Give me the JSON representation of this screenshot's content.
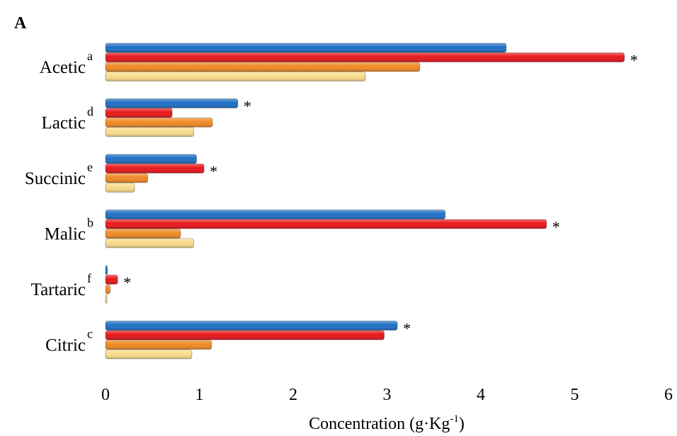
{
  "panel_label": "A",
  "chart_data": {
    "type": "bar",
    "orientation": "horizontal",
    "categories": [
      "Acetic",
      "Lactic",
      "Succinic",
      "Malic",
      "Tartaric",
      "Citric"
    ],
    "category_superscripts": [
      "a",
      "d",
      "e",
      "b",
      "f",
      "c"
    ],
    "series": [
      {
        "color": "#1f6fc4",
        "values": [
          4.27,
          1.41,
          0.97,
          3.62,
          0.02,
          3.11
        ]
      },
      {
        "color": "#e8171b",
        "values": [
          5.53,
          0.71,
          1.05,
          4.7,
          0.13,
          2.97
        ]
      },
      {
        "color": "#f08a25",
        "values": [
          3.35,
          1.14,
          0.45,
          0.8,
          0.05,
          1.13
        ]
      },
      {
        "color": "#f8dc8c",
        "values": [
          2.77,
          0.94,
          0.31,
          0.94,
          0.01,
          0.92
        ]
      }
    ],
    "significance_marks": [
      {
        "category": "Acetic",
        "symbol": "*",
        "series_index": 1
      },
      {
        "category": "Lactic",
        "symbol": "*",
        "series_index": 0
      },
      {
        "category": "Succinic",
        "symbol": "*",
        "series_index": 1
      },
      {
        "category": "Malic",
        "symbol": "*",
        "series_index": 1
      },
      {
        "category": "Tartaric",
        "symbol": "*",
        "series_index": 1
      },
      {
        "category": "Citric",
        "symbol": "*",
        "series_index": 0
      }
    ],
    "xlim": [
      0,
      6
    ],
    "xticks": [
      "0",
      "1",
      "2",
      "3",
      "4",
      "5",
      "6"
    ],
    "xlabel": "Concentration (g·Kg",
    "xlabel_superscript": "-1",
    "xlabel_suffix": ")",
    "grid": false,
    "legend": "none"
  }
}
